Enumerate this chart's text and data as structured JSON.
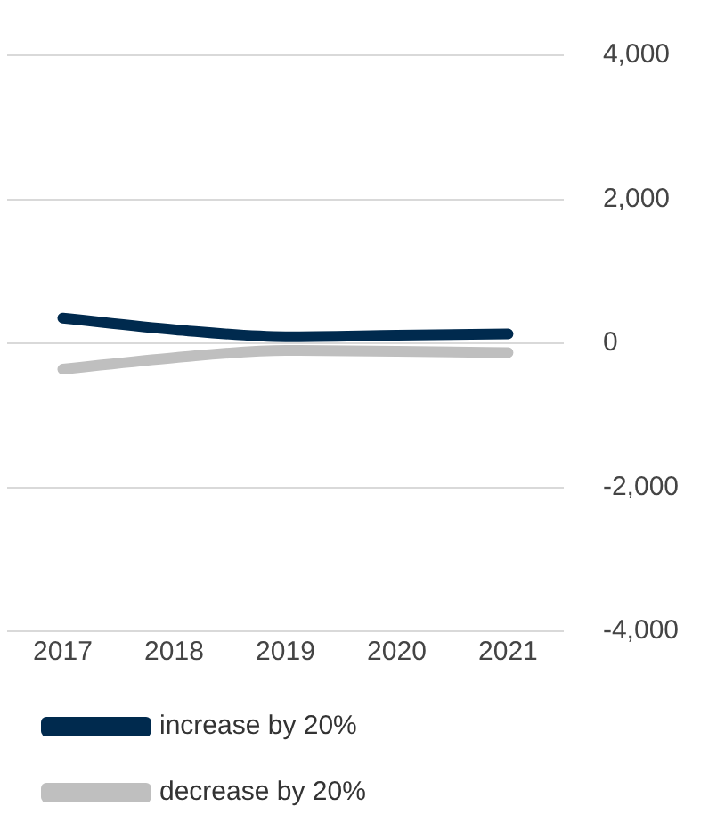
{
  "chart_data": {
    "type": "line",
    "categories": [
      "2017",
      "2018",
      "2019",
      "2020",
      "2021"
    ],
    "series": [
      {
        "name": "increase by 20%",
        "color": "#002a4e",
        "values": [
          350,
          190,
          90,
          110,
          130
        ]
      },
      {
        "name": "decrease by 20%",
        "color": "#bfbfbf",
        "values": [
          -360,
          -200,
          -100,
          -110,
          -130
        ]
      }
    ],
    "ylim": [
      -4000,
      4000
    ],
    "yticks": [
      {
        "value": -4000,
        "label": "-4,000"
      },
      {
        "value": -2000,
        "label": "-2,000"
      },
      0,
      {
        "value": 2000,
        "label": "2,000"
      },
      {
        "value": 4000,
        "label": "4,000"
      }
    ],
    "grid": "y",
    "legend": "bottom",
    "marker": "none",
    "line_style": "solid"
  }
}
